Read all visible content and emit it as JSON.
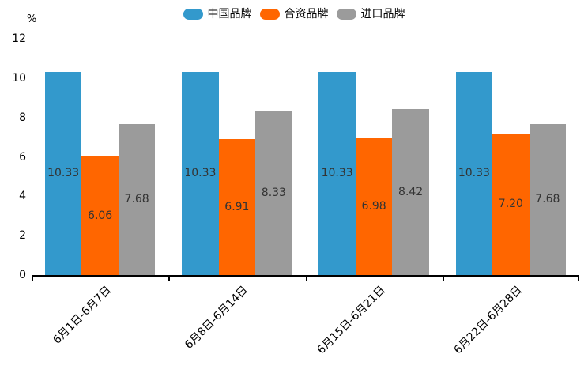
{
  "chart_data": {
    "type": "bar",
    "title": "",
    "categories": [
      "6月1日-6月7日",
      "6月8日-6月14日",
      "6月15日-6月21日",
      "6月22日-6月28日"
    ],
    "series": [
      {
        "name": "中国品牌",
        "color": "#3399cc",
        "values": [
          10.33,
          10.33,
          10.33,
          10.33
        ]
      },
      {
        "name": "合资品牌",
        "color": "#ff6600",
        "values": [
          6.06,
          6.91,
          6.98,
          7.2
        ]
      },
      {
        "name": "进口品牌",
        "color": "#9b9b9b",
        "values": [
          7.68,
          8.33,
          8.42,
          7.68
        ]
      }
    ],
    "value_labels": [
      [
        "10.33",
        "10.33",
        "10.33",
        "10.33"
      ],
      [
        "6.06",
        "6.91",
        "6.98",
        "7.20"
      ],
      [
        "7.68",
        "8.33",
        "8.42",
        "7.68"
      ]
    ],
    "label_format": "0.00",
    "xlabel": "",
    "ylabel": "%",
    "ylim": [
      0,
      12
    ],
    "yticks": [
      0,
      2,
      4,
      6,
      8,
      10,
      12
    ],
    "grid": false,
    "legend_position": "top",
    "x_label_rotation": -45,
    "value_label_color": "#333333",
    "axis_color": "#000000"
  }
}
